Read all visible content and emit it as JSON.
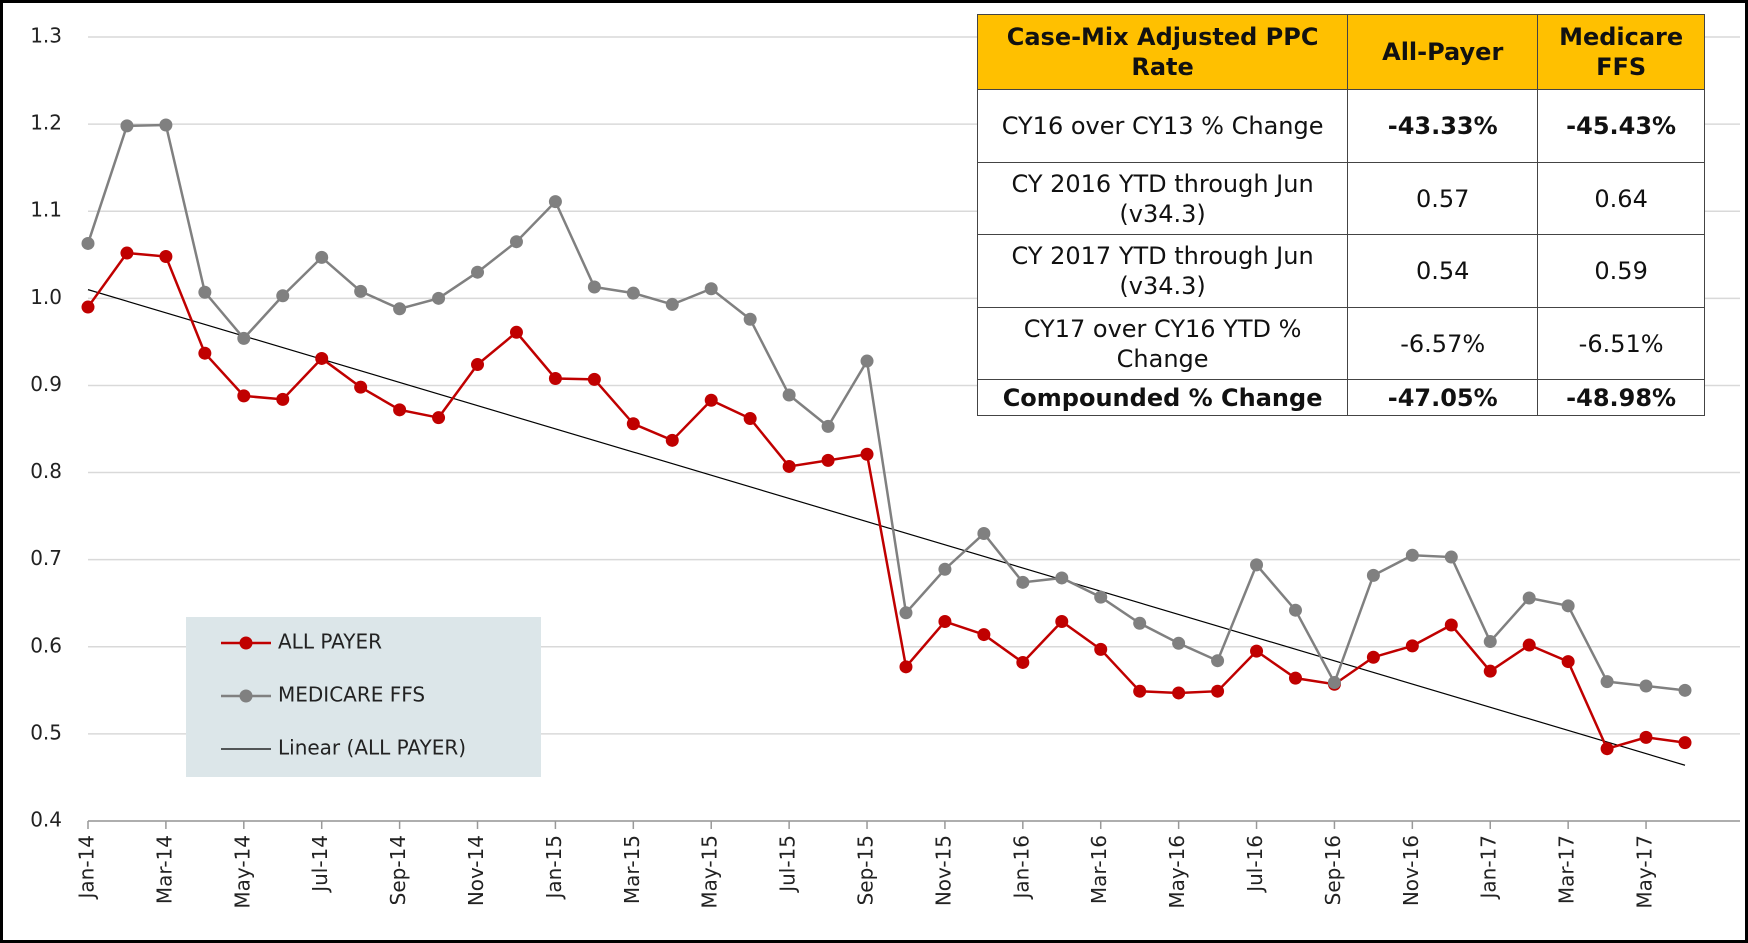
{
  "chart_data": {
    "type": "line",
    "categories": [
      "Jan-14",
      null,
      "Mar-14",
      null,
      "May-14",
      null,
      "Jul-14",
      null,
      "Sep-14",
      null,
      "Nov-14",
      null,
      "Jan-15",
      null,
      "Mar-15",
      null,
      "May-15",
      null,
      "Jul-15",
      null,
      "Sep-15",
      null,
      "Nov-15",
      null,
      "Jan-16",
      null,
      "Mar-16",
      null,
      "May-16",
      null,
      "Jul-16",
      null,
      "Sep-16",
      null,
      "Nov-16",
      null,
      "Jan-17",
      null,
      "Mar-17",
      null,
      "May-17",
      null
    ],
    "series": [
      {
        "name": "ALL PAYER",
        "color": "#c00000",
        "values": [
          0.99,
          1.052,
          1.048,
          0.937,
          0.888,
          0.884,
          0.931,
          0.898,
          0.872,
          0.863,
          0.924,
          0.961,
          0.908,
          0.907,
          0.856,
          0.837,
          0.883,
          0.862,
          0.807,
          0.814,
          0.821,
          0.577,
          0.629,
          0.614,
          0.582,
          0.629,
          0.597,
          0.549,
          0.547,
          0.549,
          0.595,
          0.564,
          0.557,
          0.588,
          0.601,
          0.625,
          0.572,
          0.602,
          0.583,
          0.483,
          0.496,
          0.49
        ]
      },
      {
        "name": "MEDICARE FFS",
        "color": "#808080",
        "values": [
          1.063,
          1.198,
          1.199,
          1.007,
          0.954,
          1.003,
          1.047,
          1.008,
          0.988,
          1.0,
          1.03,
          1.065,
          1.111,
          1.013,
          1.006,
          0.993,
          1.011,
          0.976,
          0.889,
          0.853,
          0.928,
          0.639,
          0.689,
          0.73,
          0.674,
          0.679,
          0.657,
          0.627,
          0.604,
          0.584,
          0.694,
          0.642,
          0.559,
          0.682,
          0.705,
          0.703,
          0.606,
          0.656,
          0.647,
          0.56,
          0.555,
          0.55
        ]
      }
    ],
    "trendline": {
      "name": "Linear (ALL PAYER)",
      "color": "#000000",
      "start": 1.01,
      "end": 0.464
    },
    "ylim": [
      0.4,
      1.3
    ],
    "yticks": [
      {
        "value": 0.4,
        "label": "0.4"
      },
      {
        "value": 0.5,
        "label": "0.5"
      },
      {
        "value": 0.6,
        "label": "0.6"
      },
      {
        "value": 0.7,
        "label": "0.7"
      },
      {
        "value": 0.8,
        "label": "0.8"
      },
      {
        "value": 0.9,
        "label": "0.9"
      },
      {
        "value": 1.0,
        "label": "1.0"
      },
      {
        "value": 1.1,
        "label": "1.1"
      },
      {
        "value": 1.2,
        "label": "1.2"
      },
      {
        "value": 1.3,
        "label": "1.3"
      }
    ],
    "grid": true,
    "legend": "lower-left"
  },
  "table": {
    "header": [
      "Case-Mix Adjusted PPC Rate",
      "All-Payer",
      "Medicare FFS"
    ],
    "rows": [
      [
        "CY16 over CY13 % Change",
        "-43.33%",
        "-45.43%"
      ],
      [
        "CY 2016 YTD through Jun (v34.3)",
        "0.57",
        "0.64"
      ],
      [
        "CY 2017 YTD through Jun (v34.3)",
        "0.54",
        "0.59"
      ],
      [
        "CY17 over CY16 YTD % Change",
        "-6.57%",
        "-6.51%"
      ],
      [
        "Compounded % Change",
        "-47.05%",
        "-48.98%"
      ]
    ]
  }
}
